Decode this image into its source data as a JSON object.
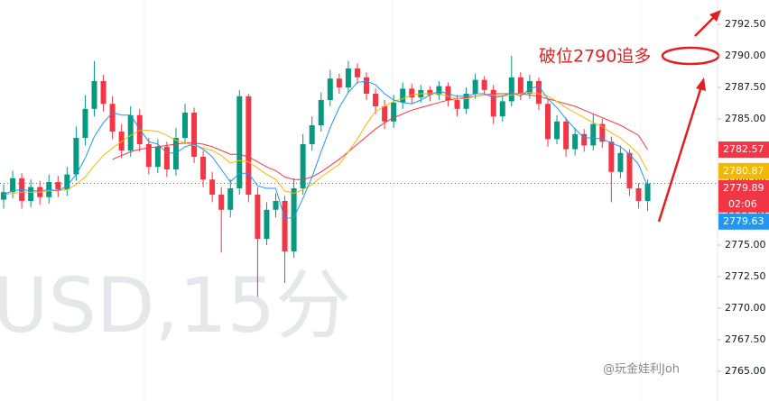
{
  "chart_data": {
    "type": "candlestick",
    "watermark": "USD,15分",
    "annotation": "破位2790追多",
    "credit": "@玩金娃利Joh",
    "countdown": "02:06",
    "up_color": "#089981",
    "down_color": "#f23645",
    "ylim": [
      2762.64,
      2794.43
    ],
    "yticks": [
      {
        "value": 2765,
        "label": "2765.00"
      },
      {
        "value": 2767.5,
        "label": "2767.50"
      },
      {
        "value": 2770,
        "label": "2770.00"
      },
      {
        "value": 2772.5,
        "label": "2772.50"
      },
      {
        "value": 2775,
        "label": "2775.00"
      },
      {
        "value": 2777.5,
        "label": "2777.50"
      },
      {
        "value": 2780,
        "label": "2780.00"
      },
      {
        "value": 2782.5,
        "label": "2782.50"
      },
      {
        "value": 2785,
        "label": "2785.00"
      },
      {
        "value": 2787.5,
        "label": "2787.50"
      },
      {
        "value": 2790,
        "label": "2790.00"
      },
      {
        "value": 2792.5,
        "label": "2792.50"
      }
    ],
    "open": [
      2778.6,
      2779.2,
      2780.3,
      2778.5,
      2779.6,
      2778.8,
      2780.0,
      2779.4,
      2780.6,
      2783.5,
      2785.8,
      2788.0,
      2786.2,
      2784.0,
      2782.5,
      2785.3,
      2783.0,
      2781.2,
      2782.8,
      2781.0,
      2783.5,
      2785.5,
      2782.0,
      2780.2,
      2779.0,
      2777.8,
      2779.5,
      2786.8,
      2779.0,
      2775.5,
      2777.8,
      2778.5,
      2774.5,
      2779.5,
      2783.0,
      2784.5,
      2786.5,
      2788.2,
      2787.5,
      2789.0,
      2788.3,
      2787.0,
      2786.0,
      2784.8,
      2786.3,
      2787.4,
      2786.7,
      2787.3,
      2786.9,
      2787.6,
      2786.5,
      2785.8,
      2787.0,
      2788.1,
      2787.3,
      2785.2,
      2786.4,
      2788.3,
      2787.0,
      2788.0,
      2786.2,
      2783.4,
      2784.8,
      2782.6,
      2783.8,
      2782.9,
      2784.6,
      2783.2,
      2780.8,
      2782.3,
      2779.5,
      2778.5
    ],
    "high": [
      2779.8,
      2780.9,
      2780.7,
      2780.2,
      2780.1,
      2780.6,
      2780.5,
      2781.2,
      2784.4,
      2786.9,
      2789.6,
      2788.5,
      2786.8,
      2784.6,
      2786.0,
      2785.8,
      2783.5,
      2783.4,
      2783.2,
      2784.3,
      2786.2,
      2785.9,
      2782.5,
      2780.8,
      2779.6,
      2780.2,
      2787.3,
      2787.0,
      2779.6,
      2778.4,
      2779.1,
      2778.9,
      2780.3,
      2783.8,
      2785.2,
      2787.1,
      2788.9,
      2788.6,
      2789.6,
      2789.4,
      2788.7,
      2787.4,
      2786.5,
      2786.9,
      2787.9,
      2787.8,
      2787.7,
      2787.6,
      2788.0,
      2787.9,
      2786.9,
      2787.5,
      2788.6,
      2788.4,
      2787.7,
      2786.9,
      2790.0,
      2788.7,
      2788.5,
      2788.3,
      2786.6,
      2785.3,
      2785.1,
      2784.3,
      2784.2,
      2785.4,
      2785.0,
      2783.6,
      2782.9,
      2782.6,
      2779.9,
      2780.2
    ],
    "low": [
      2777.9,
      2778.7,
      2777.9,
      2778.0,
      2778.2,
      2778.3,
      2778.8,
      2778.9,
      2780.1,
      2782.9,
      2785.2,
      2785.6,
      2783.4,
      2781.9,
      2782.0,
      2782.4,
      2780.6,
      2780.7,
      2780.4,
      2780.5,
      2783.0,
      2781.5,
      2779.6,
      2778.4,
      2774.4,
      2777.2,
      2779.0,
      2778.4,
      2770.9,
      2775.0,
      2777.2,
      2772.0,
      2774.0,
      2779.0,
      2782.5,
      2784.0,
      2786.0,
      2787.0,
      2787.1,
      2787.8,
      2786.5,
      2785.4,
      2784.2,
      2784.3,
      2785.8,
      2786.2,
      2786.3,
      2786.4,
      2786.5,
      2786.0,
      2785.2,
      2785.4,
      2786.6,
      2786.9,
      2784.6,
      2784.8,
      2786.0,
      2786.5,
      2786.6,
      2785.7,
      2782.8,
      2783.0,
      2782.0,
      2782.1,
      2782.4,
      2782.5,
      2782.7,
      2778.4,
      2780.3,
      2778.9,
      2777.9,
      2777.7
    ],
    "close": [
      2779.2,
      2780.3,
      2778.5,
      2779.6,
      2778.8,
      2780.0,
      2779.4,
      2780.6,
      2783.5,
      2785.8,
      2788.0,
      2786.2,
      2784.0,
      2782.5,
      2785.3,
      2783.0,
      2781.2,
      2782.8,
      2781.0,
      2783.5,
      2785.5,
      2782.0,
      2780.2,
      2779.0,
      2777.8,
      2779.5,
      2786.8,
      2779.0,
      2775.5,
      2777.8,
      2778.5,
      2774.5,
      2779.5,
      2783.0,
      2784.5,
      2786.5,
      2788.2,
      2787.5,
      2789.0,
      2788.3,
      2787.0,
      2786.0,
      2784.8,
      2786.3,
      2787.4,
      2786.7,
      2787.3,
      2786.9,
      2787.6,
      2786.5,
      2785.8,
      2787.0,
      2788.1,
      2787.3,
      2785.2,
      2786.4,
      2788.3,
      2787.0,
      2788.0,
      2786.2,
      2783.4,
      2784.8,
      2782.6,
      2783.8,
      2782.9,
      2784.6,
      2783.2,
      2780.8,
      2782.3,
      2779.5,
      2778.5,
      2779.89
    ],
    "series": [
      {
        "color": "#f23645",
        "values": [
          null,
          null,
          null,
          null,
          null,
          null,
          null,
          null,
          null,
          null,
          null,
          null,
          2781.8,
          2782.1,
          2782.4,
          2782.6,
          2782.7,
          2782.8,
          2782.9,
          2783.0,
          2783.1,
          2783.1,
          2783.0,
          2782.8,
          2782.5,
          2782.2,
          2782.2,
          2782.0,
          2781.6,
          2781.2,
          2780.9,
          2780.4,
          2780.2,
          2780.2,
          2780.4,
          2780.8,
          2781.3,
          2781.8,
          2782.4,
          2783.0,
          2783.6,
          2784.2,
          2784.7,
          2785.1,
          2785.4,
          2785.7,
          2785.9,
          2786.1,
          2786.3,
          2786.5,
          2786.6,
          2786.7,
          2786.8,
          2786.9,
          2787.0,
          2787.0,
          2787.0,
          2787.0,
          2786.9,
          2786.8,
          2786.6,
          2786.4,
          2786.2,
          2786.0,
          2785.7,
          2785.4,
          2785.1,
          2784.8,
          2784.5,
          2784.1,
          2783.7,
          2782.57
        ]
      },
      {
        "color": "#f5b800",
        "values": [
          2779.0,
          2779.1,
          2779.2,
          2779.2,
          2779.2,
          2779.3,
          2779.3,
          2779.4,
          2779.8,
          2780.4,
          2781.3,
          2782.1,
          2782.7,
          2783.2,
          2783.7,
          2784.1,
          2784.1,
          2784.0,
          2783.7,
          2783.3,
          2783.1,
          2782.9,
          2782.7,
          2782.5,
          2782.1,
          2781.5,
          2781.7,
          2781.6,
          2781.1,
          2780.6,
          2780.2,
          2779.3,
          2779.1,
          2779.4,
          2779.8,
          2780.4,
          2780.9,
          2781.4,
          2782.4,
          2783.4,
          2784.6,
          2785.6,
          2786.0,
          2786.4,
          2786.6,
          2786.9,
          2787.0,
          2787.0,
          2787.0,
          2786.8,
          2786.6,
          2786.6,
          2786.8,
          2786.9,
          2786.9,
          2786.8,
          2786.9,
          2787.0,
          2787.1,
          2787.0,
          2786.8,
          2786.4,
          2785.9,
          2785.5,
          2785.1,
          2784.7,
          2784.4,
          2783.9,
          2783.5,
          2782.9,
          2782.2,
          2780.87
        ]
      },
      {
        "color": "#2196f3",
        "values": [
          2779.0,
          2779.3,
          2779.4,
          2779.3,
          2779.3,
          2779.4,
          2779.3,
          2779.7,
          2780.6,
          2781.9,
          2783.6,
          2784.7,
          2785.5,
          2785.3,
          2785.3,
          2784.2,
          2783.2,
          2783.0,
          2782.3,
          2782.3,
          2782.8,
          2783.0,
          2782.6,
          2782.0,
          2781.0,
          2780.0,
          2780.7,
          2780.7,
          2779.7,
          2779.5,
          2779.5,
          2777.1,
          2777.2,
          2778.7,
          2780.4,
          2782.4,
          2784.3,
          2785.9,
          2787.1,
          2787.9,
          2788.0,
          2787.7,
          2787.0,
          2786.5,
          2786.3,
          2786.2,
          2786.5,
          2786.9,
          2787.2,
          2787.0,
          2786.8,
          2786.8,
          2787.0,
          2787.0,
          2786.7,
          2786.8,
          2787.1,
          2786.8,
          2787.4,
          2787.6,
          2786.6,
          2785.9,
          2785.0,
          2784.2,
          2783.5,
          2783.5,
          2783.4,
          2783.1,
          2782.8,
          2782.2,
          2781.4,
          2779.63
        ]
      }
    ]
  }
}
